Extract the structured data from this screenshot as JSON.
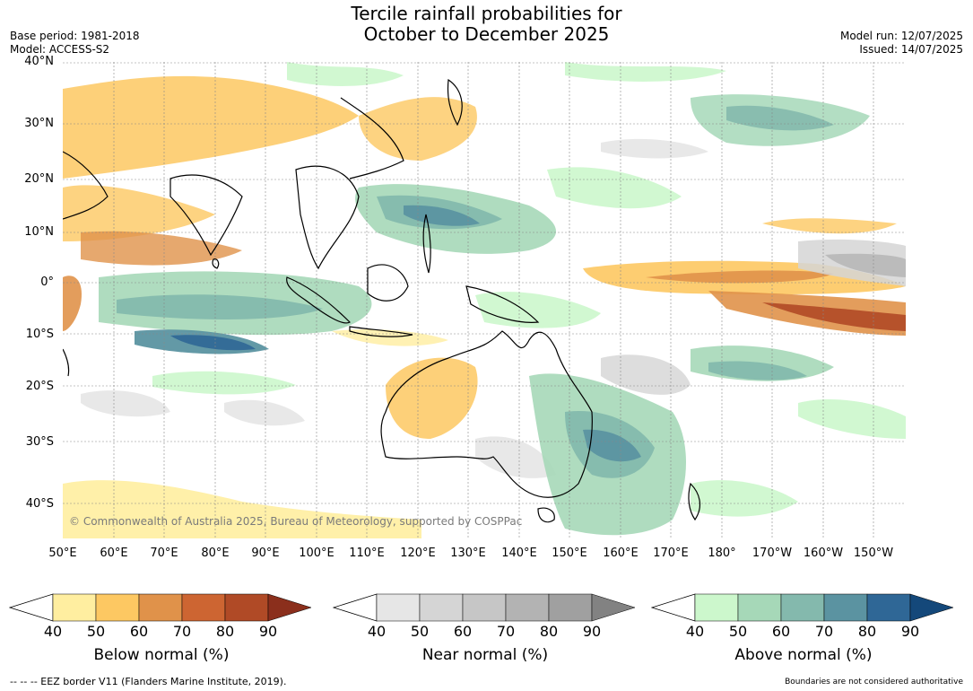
{
  "title": {
    "line1": "Tercile rainfall probabilities for",
    "line2": "October to December 2025"
  },
  "meta_left": {
    "base_period": "Base period: 1981-2018",
    "model": "Model: ACCESS-S2"
  },
  "meta_right": {
    "model_run": "Model run: 12/07/2025",
    "issued": "Issued: 14/07/2025"
  },
  "lat_labels": [
    "40°N",
    "30°N",
    "20°N",
    "10°N",
    "0°",
    "10°S",
    "20°S",
    "30°S",
    "40°S"
  ],
  "lon_labels": [
    "50°E",
    "60°E",
    "70°E",
    "80°E",
    "90°E",
    "100°E",
    "110°E",
    "120°E",
    "130°E",
    "140°E",
    "150°E",
    "160°E",
    "170°E",
    "180°",
    "170°W",
    "160°W",
    "150°W"
  ],
  "copyright": "© Commonwealth of Australia 2025, Bureau of Meteorology, supported by COSPPac",
  "colorbars": [
    {
      "label": "Below normal (%)",
      "ticks": [
        "40",
        "50",
        "60",
        "70",
        "80",
        "90"
      ],
      "colors": [
        "#ffeea0",
        "#fdc862",
        "#e0924a",
        "#cd6532",
        "#b04a26",
        "#8b2f1c"
      ]
    },
    {
      "label": "Near normal (%)",
      "ticks": [
        "40",
        "50",
        "60",
        "70",
        "80",
        "90"
      ],
      "colors": [
        "#e6e6e6",
        "#d5d5d5",
        "#c6c6c6",
        "#b3b3b3",
        "#a0a0a0",
        "#828282"
      ]
    },
    {
      "label": "Above normal (%)",
      "ticks": [
        "40",
        "50",
        "60",
        "70",
        "80",
        "90"
      ],
      "colors": [
        "#ccf7cc",
        "#a6d8b8",
        "#84b9ad",
        "#5b93a1",
        "#2f6796",
        "#14487a"
      ]
    }
  ],
  "footer_left": "--  --  -- EEZ border V11 (Flanders Marine Institute, 2019).",
  "footer_right": "Boundaries are not considered authoritative"
}
